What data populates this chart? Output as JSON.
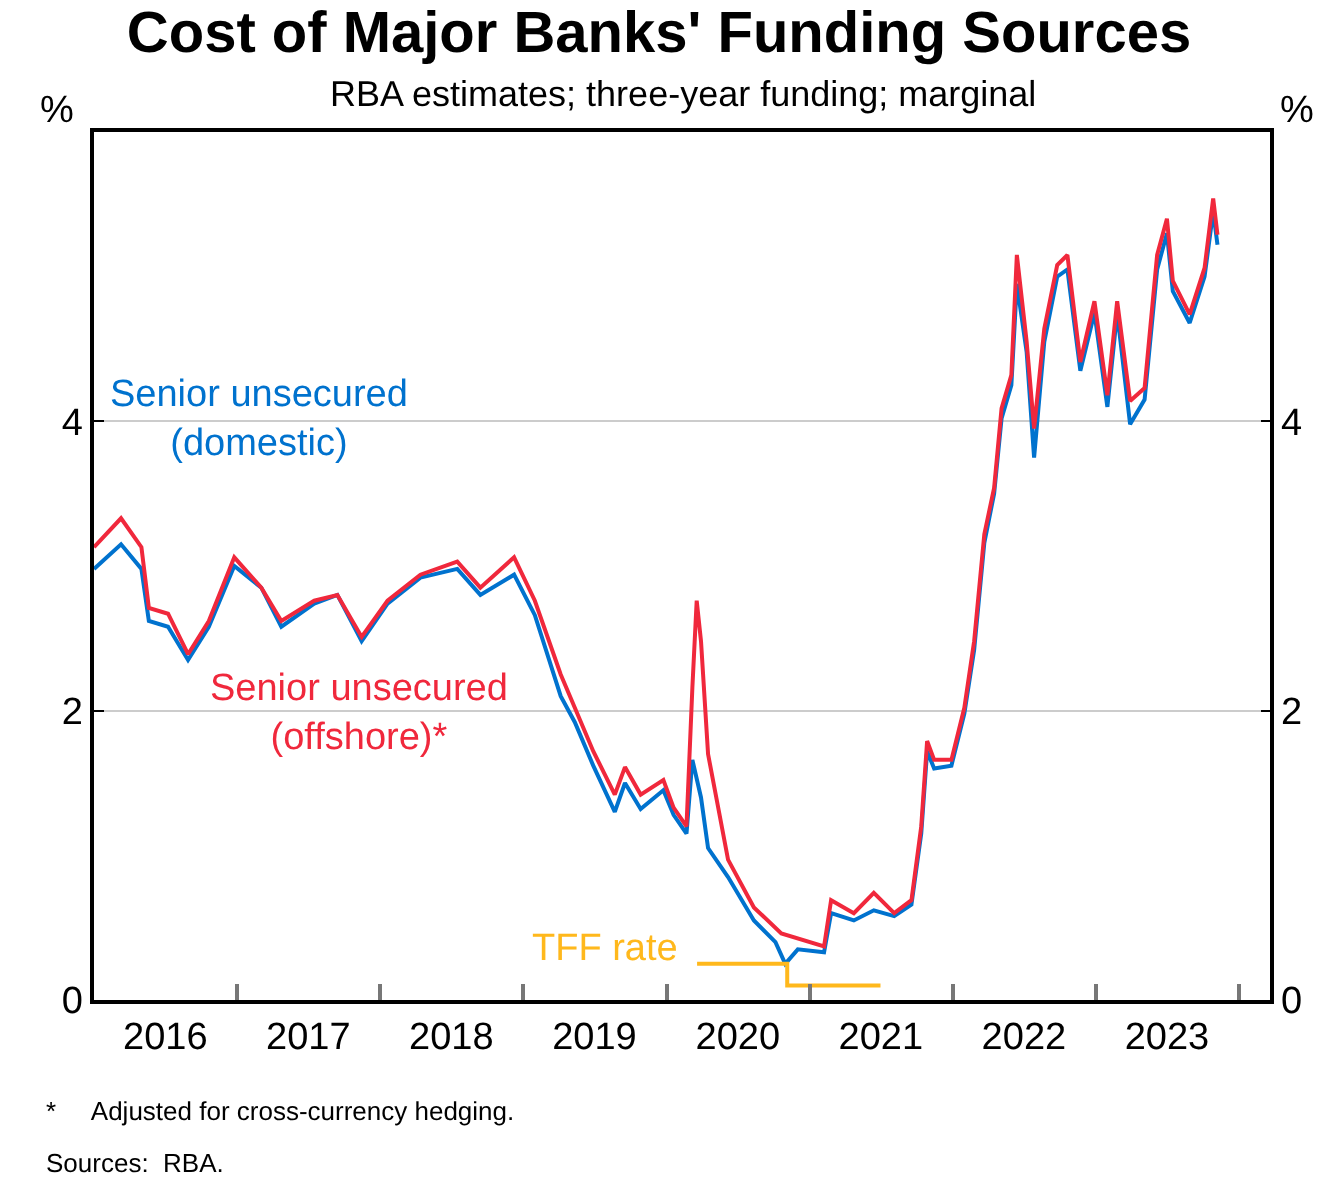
{
  "chart_data": {
    "type": "line",
    "title": "Cost of Major Banks' Funding Sources",
    "subtitle": "RBA estimates; three-year funding; marginal",
    "ylabel": "%",
    "y2label": "%",
    "xlim": [
      "2016-01-01",
      "2024-03-20"
    ],
    "xticks": [
      {
        "value": "2016-07-01",
        "label": "2016"
      },
      {
        "value": "2017-01-01",
        "label": null
      },
      {
        "value": "2017-07-01",
        "label": "2017"
      },
      {
        "value": "2018-01-01",
        "label": null
      },
      {
        "value": "2018-07-01",
        "label": "2018"
      },
      {
        "value": "2019-01-01",
        "label": null
      },
      {
        "value": "2019-07-01",
        "label": "2019"
      },
      {
        "value": "2020-01-01",
        "label": null
      },
      {
        "value": "2020-07-01",
        "label": "2020"
      },
      {
        "value": "2021-01-01",
        "label": null
      },
      {
        "value": "2021-07-01",
        "label": "2021"
      },
      {
        "value": "2022-01-01",
        "label": null
      },
      {
        "value": "2022-07-01",
        "label": "2022"
      },
      {
        "value": "2023-01-01",
        "label": null
      },
      {
        "value": "2023-07-01",
        "label": "2023"
      },
      {
        "value": "2024-01-01",
        "label": null
      }
    ],
    "ylim": [
      0,
      6
    ],
    "yticks": [
      0,
      2,
      4
    ],
    "y2lim": [
      0,
      6
    ],
    "y2ticks": [
      0,
      2,
      4
    ],
    "grid": "y",
    "legend": false,
    "marker": "none",
    "line_style": "solid",
    "series": [
      {
        "name": "Senior unsecured\n(domestic)",
        "color": "#0072ce",
        "x": [
          "2016-01-01",
          "2016-03-10",
          "2016-05-01",
          "2016-05-20",
          "2016-07-08",
          "2016-08-28",
          "2016-10-20",
          "2016-12-24",
          "2017-03-03",
          "2017-04-23",
          "2017-07-16",
          "2017-09-13",
          "2017-11-14",
          "2018-01-19",
          "2018-04-13",
          "2018-07-16",
          "2018-09-13",
          "2018-12-08",
          "2019-01-30",
          "2019-04-06",
          "2019-05-12",
          "2019-06-28",
          "2019-08-22",
          "2019-09-17",
          "2019-10-27",
          "2019-12-24",
          "2020-01-19",
          "2020-02-21",
          "2020-03-07",
          "2020-03-29",
          "2020-04-16",
          "2020-06-06",
          "2020-08-11",
          "2020-10-05",
          "2020-10-30",
          "2020-12-01",
          "2021-02-06",
          "2021-02-24",
          "2021-04-23",
          "2021-06-13",
          "2021-08-04",
          "2021-09-17",
          "2021-10-12",
          "2021-10-27",
          "2021-11-14",
          "2021-12-28",
          "2022-01-30",
          "2022-02-24",
          "2022-03-22",
          "2022-04-16",
          "2022-05-05",
          "2022-05-30",
          "2022-06-13",
          "2022-07-08",
          "2022-07-27",
          "2022-08-22",
          "2022-09-24",
          "2022-10-20",
          "2022-11-22",
          "2022-12-28",
          "2023-01-30",
          "2023-02-24",
          "2023-03-29",
          "2023-05-05",
          "2023-06-06",
          "2023-07-01",
          "2023-07-16",
          "2023-08-28",
          "2023-10-05",
          "2023-10-27",
          "2023-11-07"
        ],
        "values": [
          2.98,
          3.15,
          2.98,
          2.62,
          2.58,
          2.35,
          2.58,
          3.0,
          2.85,
          2.58,
          2.74,
          2.8,
          2.48,
          2.74,
          2.92,
          2.98,
          2.8,
          2.94,
          2.66,
          2.1,
          1.92,
          1.62,
          1.3,
          1.5,
          1.32,
          1.45,
          1.28,
          1.15,
          1.66,
          1.4,
          1.05,
          0.85,
          0.55,
          0.4,
          0.25,
          0.35,
          0.33,
          0.6,
          0.55,
          0.62,
          0.58,
          0.66,
          1.15,
          1.72,
          1.6,
          1.62,
          1.98,
          2.42,
          3.16,
          3.5,
          4.02,
          4.25,
          4.95,
          4.48,
          3.75,
          4.55,
          5.0,
          5.05,
          4.35,
          4.75,
          4.1,
          4.75,
          3.98,
          4.15,
          5.05,
          5.3,
          4.9,
          4.68,
          5.0,
          5.45,
          5.22
        ]
      },
      {
        "name": "Senior unsecured\n(offshore)*",
        "color": "#f0283c",
        "x": [
          "2016-01-01",
          "2016-03-10",
          "2016-05-01",
          "2016-05-20",
          "2016-07-08",
          "2016-08-28",
          "2016-10-20",
          "2016-12-24",
          "2017-03-03",
          "2017-04-23",
          "2017-07-16",
          "2017-09-13",
          "2017-11-14",
          "2018-01-19",
          "2018-04-13",
          "2018-07-16",
          "2018-09-13",
          "2018-12-08",
          "2019-01-30",
          "2019-04-06",
          "2019-05-12",
          "2019-06-28",
          "2019-08-22",
          "2019-09-17",
          "2019-10-27",
          "2019-12-24",
          "2020-01-19",
          "2020-02-21",
          "2020-03-07",
          "2020-03-18",
          "2020-03-29",
          "2020-04-16",
          "2020-06-06",
          "2020-08-11",
          "2020-10-20",
          "2021-02-06",
          "2021-02-24",
          "2021-04-23",
          "2021-06-13",
          "2021-08-04",
          "2021-09-17",
          "2021-10-12",
          "2021-10-27",
          "2021-11-14",
          "2021-12-28",
          "2022-01-30",
          "2022-02-24",
          "2022-03-22",
          "2022-04-16",
          "2022-05-05",
          "2022-05-30",
          "2022-06-13",
          "2022-07-08",
          "2022-07-27",
          "2022-08-22",
          "2022-09-24",
          "2022-10-20",
          "2022-11-22",
          "2022-12-28",
          "2023-01-30",
          "2023-02-24",
          "2023-03-29",
          "2023-05-05",
          "2023-06-06",
          "2023-07-01",
          "2023-07-16",
          "2023-08-28",
          "2023-10-05",
          "2023-10-27",
          "2023-11-07"
        ],
        "values": [
          3.13,
          3.33,
          3.13,
          2.71,
          2.67,
          2.39,
          2.62,
          3.06,
          2.85,
          2.62,
          2.76,
          2.8,
          2.51,
          2.76,
          2.94,
          3.03,
          2.85,
          3.06,
          2.76,
          2.25,
          2.02,
          1.72,
          1.42,
          1.61,
          1.42,
          1.52,
          1.33,
          1.2,
          2.16,
          2.76,
          2.48,
          1.7,
          0.97,
          0.64,
          0.46,
          0.37,
          0.69,
          0.6,
          0.74,
          0.6,
          0.69,
          1.2,
          1.79,
          1.66,
          1.66,
          2.02,
          2.48,
          3.22,
          3.54,
          4.09,
          4.32,
          5.15,
          4.55,
          3.95,
          4.64,
          5.08,
          5.15,
          4.41,
          4.83,
          4.18,
          4.83,
          4.14,
          4.23,
          5.15,
          5.4,
          4.97,
          4.74,
          5.06,
          5.54,
          5.29
        ]
      },
      {
        "name": "TFF rate",
        "type": "step",
        "color": "#ffb81c",
        "x": [
          "2020-03-19",
          "2020-11-04",
          "2021-06-30"
        ],
        "values": [
          0.25,
          0.1,
          0.1
        ]
      }
    ],
    "annotations": [
      "*     Adjusted for cross-currency hedging.",
      "Sources:  RBA."
    ]
  }
}
